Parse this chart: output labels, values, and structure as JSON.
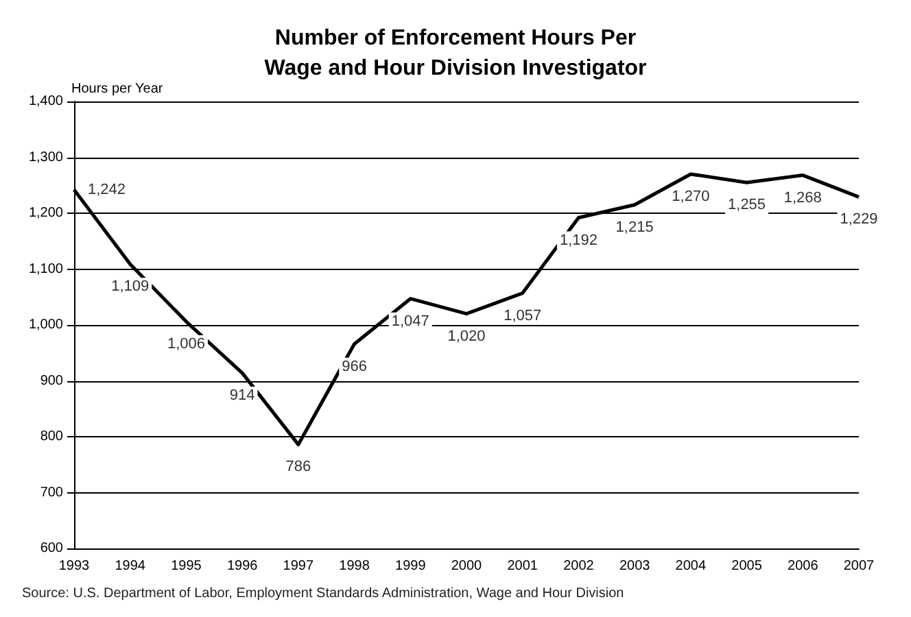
{
  "chart_data": {
    "type": "line",
    "title": "Number of Enforcement Hours Per\nWage and Hour Division Investigator",
    "ylabel": "Hours per Year",
    "categories": [
      "1993",
      "1994",
      "1995",
      "1996",
      "1997",
      "1998",
      "1999",
      "2000",
      "2001",
      "2002",
      "2003",
      "2004",
      "2005",
      "2006",
      "2007"
    ],
    "series": [
      {
        "color": "#000000",
        "values": [
          1242,
          1109,
          1006,
          914,
          786,
          966,
          1047,
          1020,
          1057,
          1192,
          1215,
          1270,
          1255,
          1268,
          1229
        ],
        "value_labels": [
          "1,242",
          "1,109",
          "1,006",
          "914",
          "786",
          "966",
          "1,047",
          "1,020",
          "1,057",
          "1,192",
          "1,215",
          "1,270",
          "1,255",
          "1,268",
          "1,229"
        ]
      }
    ],
    "ylim": [
      600,
      1400
    ],
    "yticks": [
      {
        "value": 600,
        "label": "600"
      },
      {
        "value": 700,
        "label": "700"
      },
      {
        "value": 800,
        "label": "800"
      },
      {
        "value": 900,
        "label": "900"
      },
      {
        "value": 1000,
        "label": "1,000"
      },
      {
        "value": 1100,
        "label": "1,100"
      },
      {
        "value": 1200,
        "label": "1,200"
      },
      {
        "value": 1300,
        "label": "1,300"
      },
      {
        "value": 1400,
        "label": "1,400"
      }
    ],
    "grid": "y",
    "marker": "none",
    "line_style": "solid",
    "annotations": [
      "Source: U.S. Department of Labor, Employment Standards Administration, Wage and Hour Division"
    ]
  }
}
